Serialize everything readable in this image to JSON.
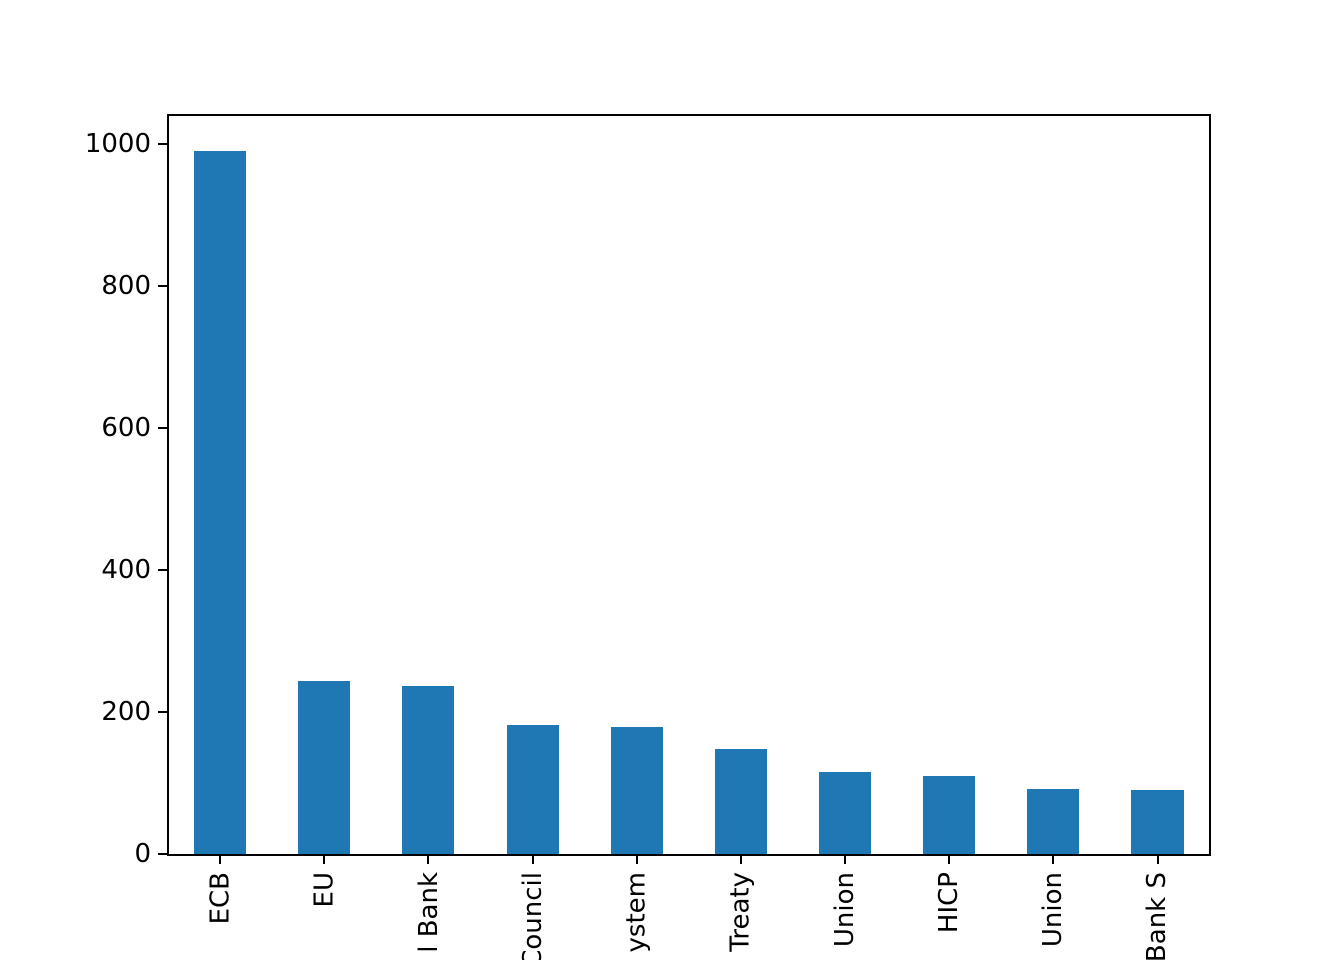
{
  "figure": {
    "background_color": "#ffffff",
    "axes_color": "#000000",
    "text_color": "#000000"
  },
  "chart_data": {
    "type": "bar",
    "title": "",
    "xlabel": "",
    "ylabel": "",
    "categories": [
      "ECB",
      "EU",
      "l Bank",
      "Council",
      "ystem",
      "Treaty",
      "Union",
      "HICP",
      "Union",
      "Bank S"
    ],
    "values": [
      990,
      244,
      237,
      182,
      179,
      148,
      116,
      111,
      92,
      90
    ],
    "yticks": [
      0,
      200,
      400,
      600,
      800,
      1000
    ],
    "ylim": [
      0,
      1040
    ],
    "bar_color": "#1f77b4",
    "bar_width_fraction": 0.5,
    "tick_label_rotation": 90,
    "grid": false,
    "legend": null,
    "x_labels_clipped_at_bottom_edge": true
  }
}
